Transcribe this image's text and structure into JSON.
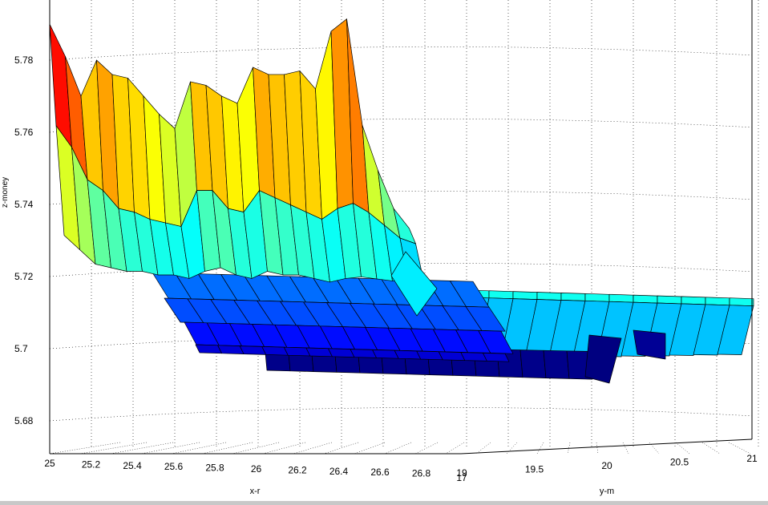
{
  "chart_data": {
    "type": "surface",
    "title": "",
    "xlabel": "x-r",
    "ylabel": "y-m",
    "zlabel": "z-money",
    "xlim": [
      25,
      26.8
    ],
    "ylim": [
      19,
      21
    ],
    "zlim": [
      5.675,
      5.79
    ],
    "x_ticks": [
      "25",
      "25.2",
      "25.4",
      "25.6",
      "25.8",
      "26",
      "26.2",
      "26.4",
      "26.6",
      "26.8"
    ],
    "y_ticks": [
      "19",
      "19.5",
      "20",
      "20.5",
      "21"
    ],
    "y_ticks_overlap": "17",
    "z_ticks": [
      "5.68",
      "5.7",
      "5.72",
      "5.74",
      "5.76",
      "5.78"
    ],
    "colormap": "jet",
    "grid": true,
    "view": "3d",
    "profile_back": [
      5.79,
      5.781,
      5.77,
      5.78,
      5.776,
      5.775,
      5.77,
      5.765,
      5.761,
      5.774,
      5.773,
      5.77,
      5.768,
      5.778,
      5.776,
      5.776,
      5.777,
      5.772,
      5.788,
      5.791,
      5.761,
      5.748,
      5.737,
      5.731
    ],
    "profile_mid": [
      5.764,
      5.758,
      5.749,
      5.746,
      5.741,
      5.74,
      5.738,
      5.737,
      5.736,
      5.746,
      5.746,
      5.741,
      5.74,
      5.746,
      5.744,
      5.742,
      5.74,
      5.738,
      5.741,
      5.742,
      5.739,
      5.735,
      5.731,
      5.729
    ],
    "profile_low": [
      5.738,
      5.734,
      5.73,
      5.729,
      5.728,
      5.728,
      5.727,
      5.727,
      5.726,
      5.728,
      5.729,
      5.727,
      5.726,
      5.728,
      5.727,
      5.727,
      5.726,
      5.725,
      5.726,
      5.726,
      5.725,
      5.724,
      5.724,
      5.723
    ],
    "plateau_level": 5.729,
    "shelf_levels": [
      5.717,
      5.714,
      5.708,
      5.703
    ],
    "floor_level": 5.696
  }
}
